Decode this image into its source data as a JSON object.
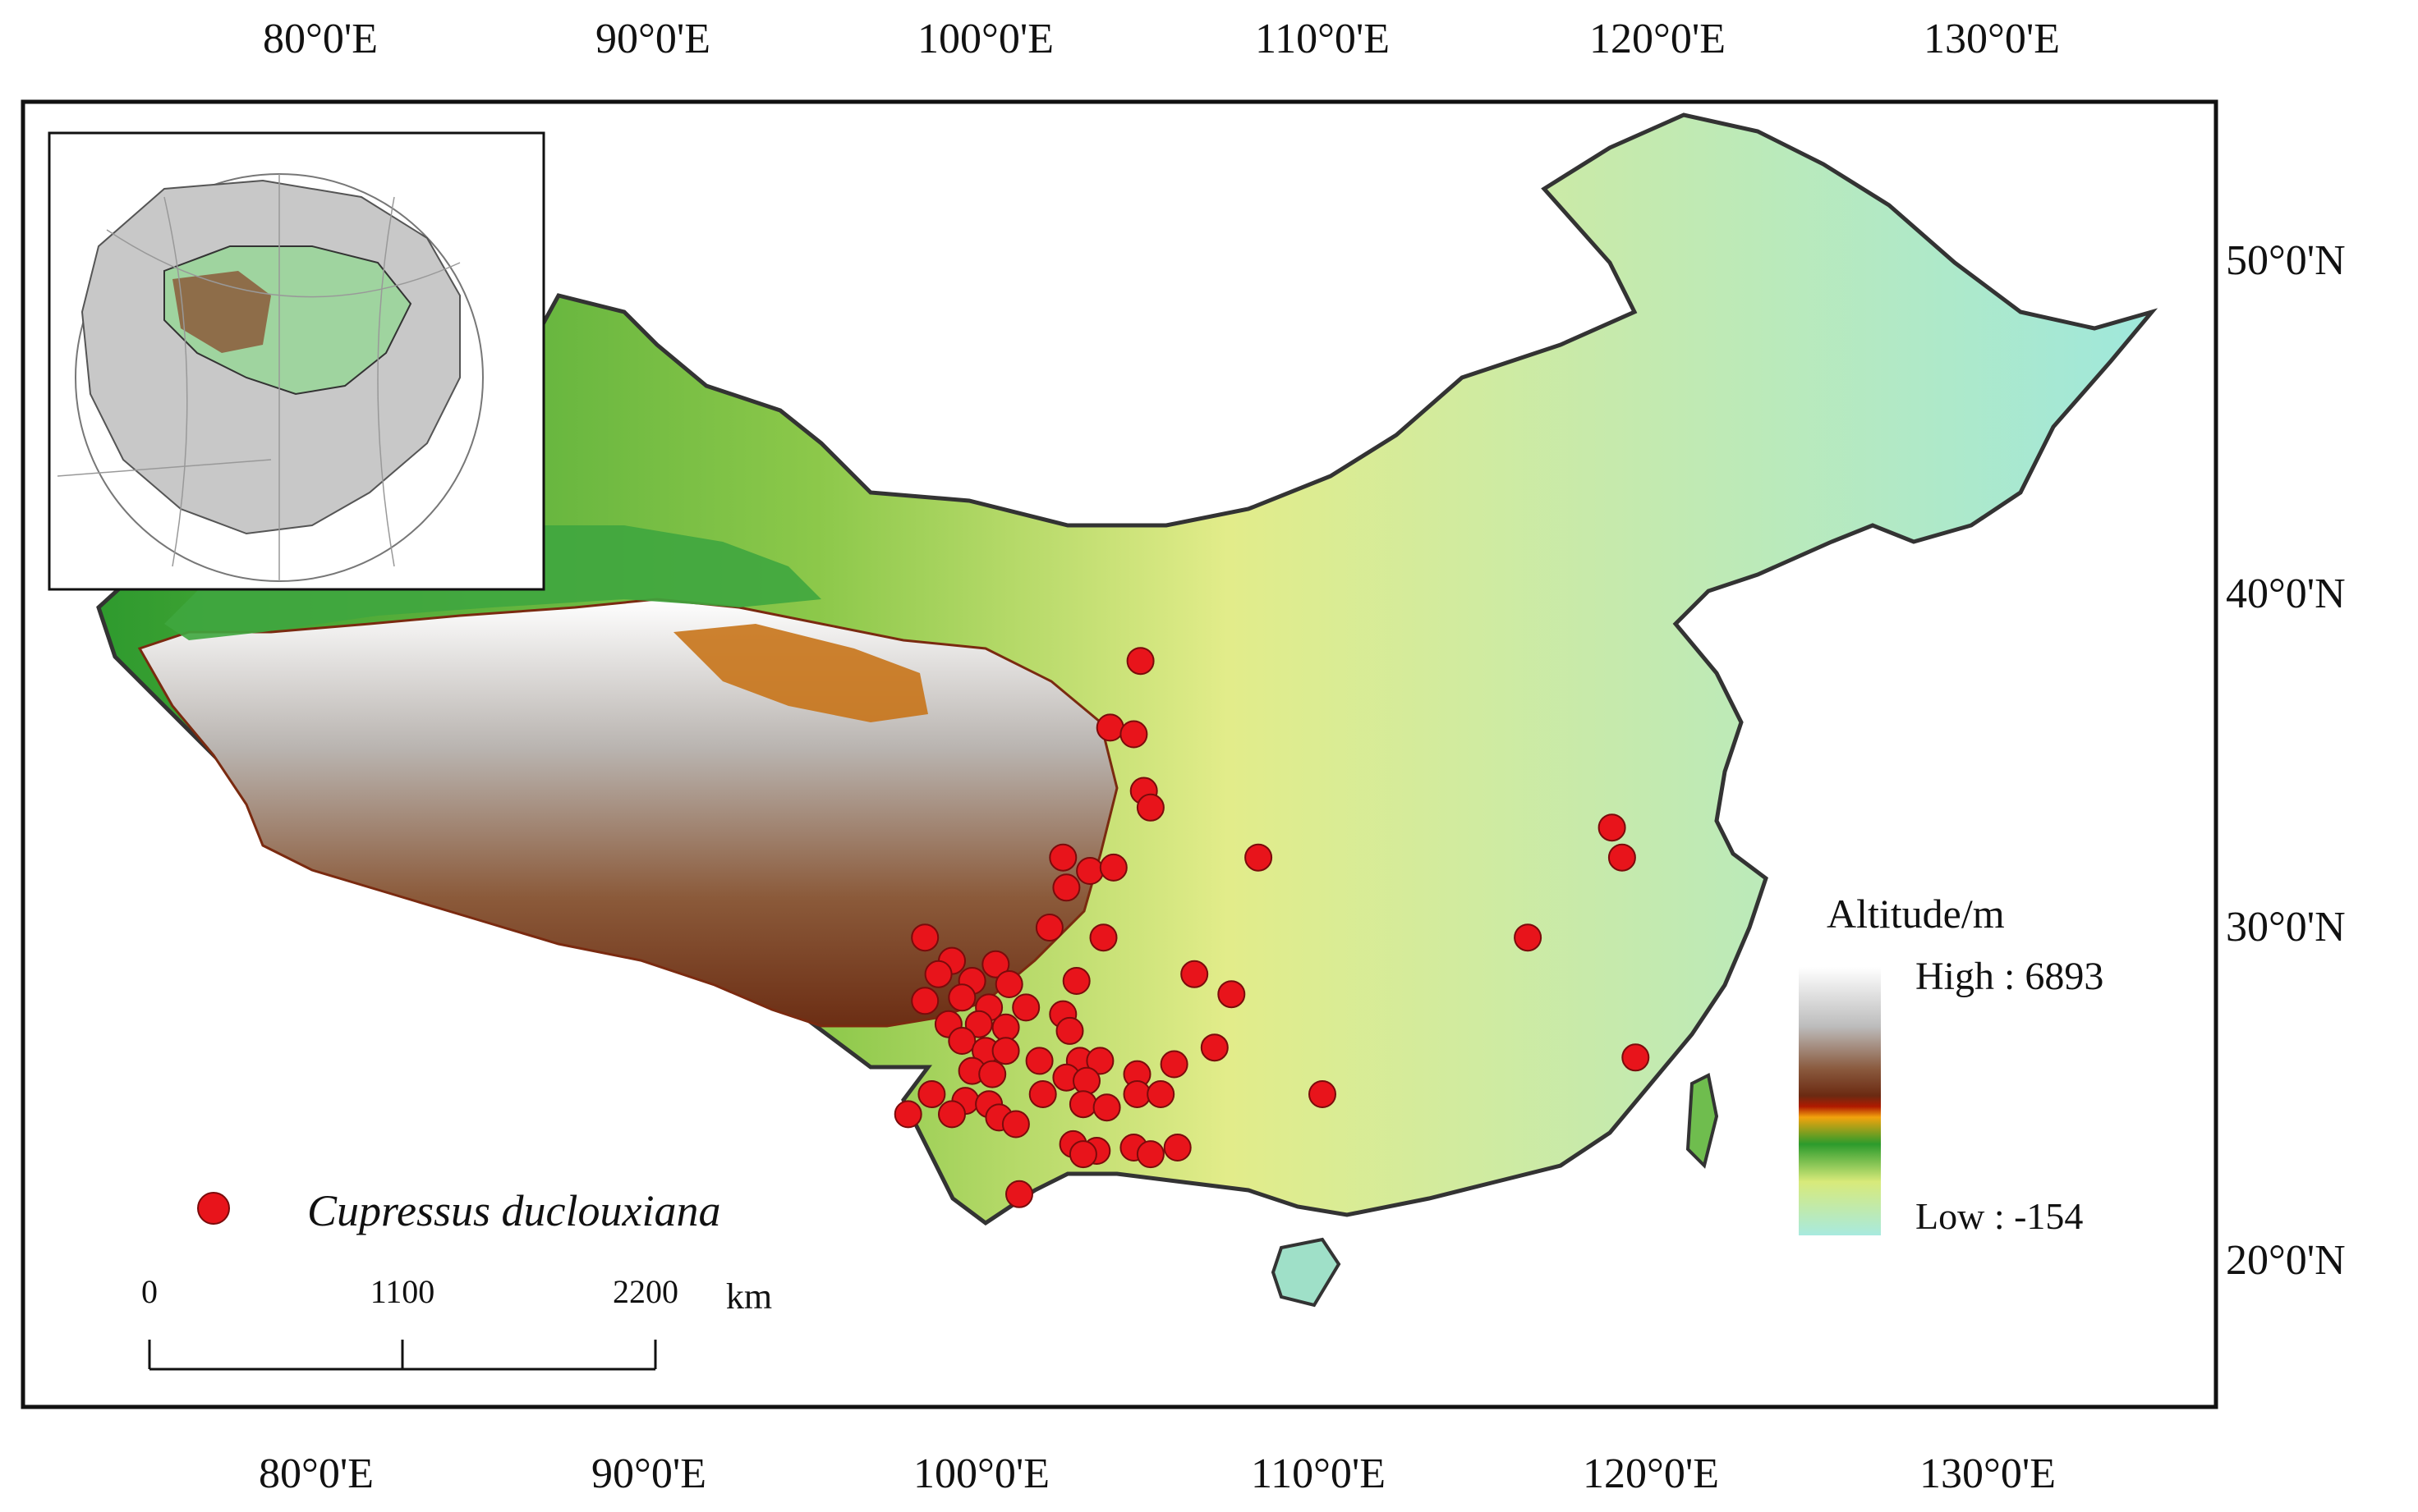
{
  "map": {
    "lon_ticks": [
      "80°0'E",
      "90°0'E",
      "100°0'E",
      "110°0'E",
      "120°0'E",
      "130°0'E"
    ],
    "lat_ticks": [
      "50°0'N",
      "40°0'N",
      "30°0'N",
      "20°0'N"
    ],
    "extent": {
      "lon_min": 72,
      "lon_max": 136,
      "lat_min": 17,
      "lat_max": 54
    }
  },
  "legend": {
    "title": "Altitude/m",
    "high_label": "High : 6893",
    "low_label": "Low : -154",
    "ramp_colors": [
      "#ffffff",
      "#c8c8c8",
      "#8a5a3e",
      "#6b2a12",
      "#b01a00",
      "#f2a30d",
      "#2c9b2c",
      "#d8ea7a",
      "#a8eadf"
    ]
  },
  "species": {
    "name": "Cupressus duclouxiana",
    "marker_color": "#e8141b",
    "occurrences": [
      [
        104.6,
        38.0
      ],
      [
        103.7,
        36.0
      ],
      [
        104.4,
        35.8
      ],
      [
        104.7,
        34.1
      ],
      [
        104.9,
        33.6
      ],
      [
        102.3,
        32.1
      ],
      [
        103.1,
        31.7
      ],
      [
        103.8,
        31.8
      ],
      [
        102.4,
        31.2
      ],
      [
        101.9,
        30.0
      ],
      [
        103.5,
        29.7
      ],
      [
        98.2,
        29.7
      ],
      [
        99.0,
        29.0
      ],
      [
        100.3,
        28.9
      ],
      [
        98.6,
        28.6
      ],
      [
        99.6,
        28.4
      ],
      [
        100.7,
        28.3
      ],
      [
        102.7,
        28.4
      ],
      [
        98.2,
        27.8
      ],
      [
        99.3,
        27.9
      ],
      [
        100.1,
        27.6
      ],
      [
        101.2,
        27.6
      ],
      [
        102.3,
        27.4
      ],
      [
        98.9,
        27.1
      ],
      [
        99.8,
        27.1
      ],
      [
        100.6,
        27.0
      ],
      [
        102.5,
        26.9
      ],
      [
        99.3,
        26.6
      ],
      [
        100.0,
        26.3
      ],
      [
        100.6,
        26.3
      ],
      [
        101.6,
        26.0
      ],
      [
        102.8,
        26.0
      ],
      [
        103.4,
        26.0
      ],
      [
        99.6,
        25.7
      ],
      [
        100.2,
        25.6
      ],
      [
        102.4,
        25.5
      ],
      [
        103.0,
        25.4
      ],
      [
        104.5,
        25.6
      ],
      [
        105.6,
        25.9
      ],
      [
        106.8,
        26.4
      ],
      [
        98.4,
        25.0
      ],
      [
        99.4,
        24.8
      ],
      [
        100.1,
        24.7
      ],
      [
        101.7,
        25.0
      ],
      [
        102.9,
        24.7
      ],
      [
        103.6,
        24.6
      ],
      [
        104.5,
        25.0
      ],
      [
        105.2,
        25.0
      ],
      [
        97.7,
        24.4
      ],
      [
        99.0,
        24.4
      ],
      [
        100.4,
        24.3
      ],
      [
        100.9,
        24.1
      ],
      [
        102.6,
        23.5
      ],
      [
        103.3,
        23.3
      ],
      [
        104.4,
        23.4
      ],
      [
        104.9,
        23.2
      ],
      [
        105.7,
        23.4
      ],
      [
        102.9,
        23.2
      ],
      [
        101.0,
        22.0
      ],
      [
        106.2,
        28.6
      ],
      [
        107.3,
        28.0
      ],
      [
        108.1,
        32.1
      ],
      [
        116.1,
        29.7
      ],
      [
        118.6,
        33.0
      ],
      [
        118.9,
        32.1
      ],
      [
        119.3,
        26.1
      ],
      [
        110.0,
        25.0
      ]
    ]
  },
  "scalebar": {
    "labels": [
      "0",
      "1100",
      "2200"
    ],
    "unit": "km"
  }
}
